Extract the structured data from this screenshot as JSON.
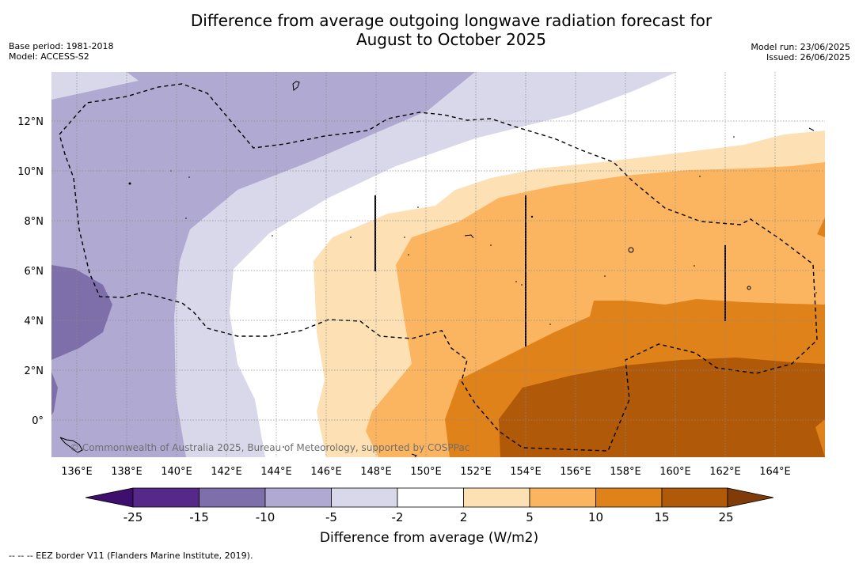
{
  "header": {
    "title_line1": "Difference from average outgoing longwave radiation forecast for",
    "title_line2": "August to October 2025",
    "base_period": "Base period: 1981-2018",
    "model": "Model: ACCESS-S2",
    "model_run": "Model run: 23/06/2025",
    "issued": "Issued: 26/06/2025"
  },
  "map": {
    "lat_labels": [
      "12°N",
      "10°N",
      "8°N",
      "6°N",
      "4°N",
      "2°N",
      "0°"
    ],
    "lon_labels": [
      "136°E",
      "138°E",
      "140°E",
      "142°E",
      "144°E",
      "146°E",
      "148°E",
      "150°E",
      "152°E",
      "154°E",
      "156°E",
      "158°E",
      "160°E",
      "162°E",
      "164°E"
    ],
    "copyright": "© Commonwealth of Australia 2025, Bureau of Meteorology, supported by COSPPac"
  },
  "colorbar": {
    "label": "Difference from average (W/m2)",
    "ticks": [
      "-25",
      "-15",
      "-10",
      "-5",
      "-2",
      "2",
      "5",
      "10",
      "15",
      "25"
    ],
    "colors": [
      "#3f0f6e",
      "#55288a",
      "#7e6fab",
      "#b0a9d2",
      "#d8d8ea",
      "#ffffff",
      "#fde0b4",
      "#fbb560",
      "#e0821a",
      "#b05908",
      "#7f3b08"
    ]
  },
  "footnote": "--  --  -- EEZ border V11 (Flanders Marine Institute, 2019)."
}
